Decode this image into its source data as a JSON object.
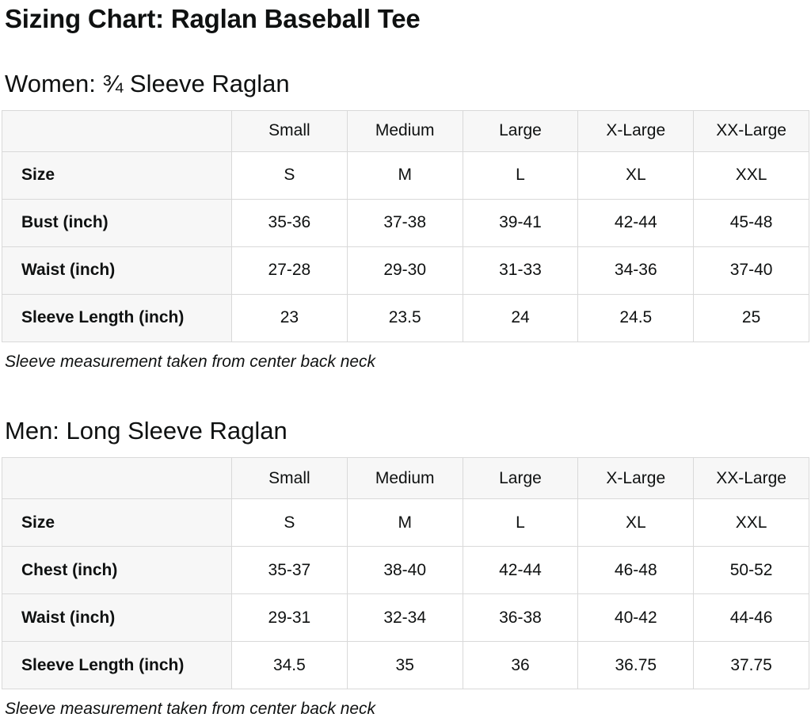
{
  "page": {
    "title": "Sizing Chart: Raglan Baseball Tee"
  },
  "colors": {
    "text": "#0f1111",
    "table_border": "#d9d9d9",
    "header_cell_background": "#f7f7f7",
    "data_cell_background": "#ffffff"
  },
  "sections": [
    {
      "heading": "Women: ¾ Sleeve Raglan",
      "note": "Sleeve measurement taken from center back neck",
      "table": {
        "columns": [
          "",
          "Small",
          "Medium",
          "Large",
          "X-Large",
          "XX-Large"
        ],
        "rows": [
          {
            "label": "Size",
            "values": [
              "S",
              "M",
              "L",
              "XL",
              "XXL"
            ]
          },
          {
            "label": "Bust (inch)",
            "values": [
              "35-36",
              "37-38",
              "39-41",
              "42-44",
              "45-48"
            ]
          },
          {
            "label": "Waist (inch)",
            "values": [
              "27-28",
              "29-30",
              "31-33",
              "34-36",
              "37-40"
            ]
          },
          {
            "label": "Sleeve Length (inch)",
            "values": [
              "23",
              "23.5",
              "24",
              "24.5",
              "25"
            ]
          }
        ]
      }
    },
    {
      "heading": "Men: Long Sleeve Raglan",
      "note": "Sleeve measurement taken from center back neck",
      "table": {
        "columns": [
          "",
          "Small",
          "Medium",
          "Large",
          "X-Large",
          "XX-Large"
        ],
        "rows": [
          {
            "label": "Size",
            "values": [
              "S",
              "M",
              "L",
              "XL",
              "XXL"
            ]
          },
          {
            "label": "Chest (inch)",
            "values": [
              "35-37",
              "38-40",
              "42-44",
              "46-48",
              "50-52"
            ]
          },
          {
            "label": "Waist (inch)",
            "values": [
              "29-31",
              "32-34",
              "36-38",
              "40-42",
              "44-46"
            ]
          },
          {
            "label": "Sleeve Length (inch)",
            "values": [
              "34.5",
              "35",
              "36",
              "36.75",
              "37.75"
            ]
          }
        ]
      }
    }
  ]
}
